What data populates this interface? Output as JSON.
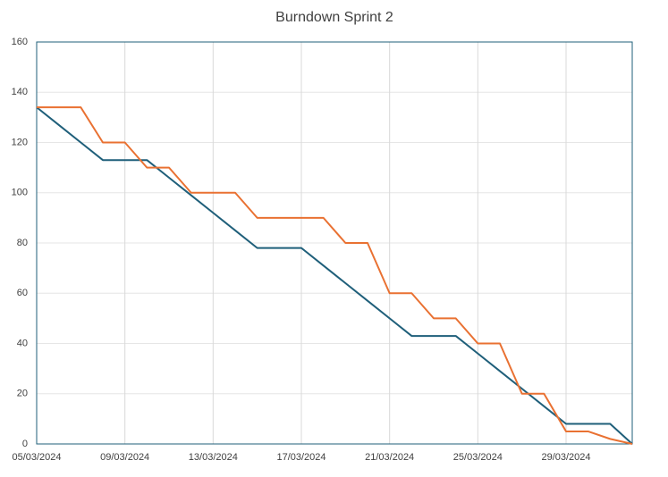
{
  "chart_data": {
    "type": "line",
    "title": "Burndown Sprint 2",
    "categories": [
      "05/03/2024",
      null,
      null,
      null,
      "09/03/2024",
      null,
      null,
      null,
      "13/03/2024",
      null,
      null,
      null,
      "17/03/2024",
      null,
      null,
      null,
      "21/03/2024",
      null,
      null,
      null,
      "25/03/2024",
      null,
      null,
      null,
      "29/03/2024",
      null,
      null,
      null
    ],
    "series": [
      {
        "color": "#1f5f7a",
        "values": [
          134,
          127,
          120,
          113,
          113,
          113,
          106,
          99,
          92,
          85,
          78,
          78,
          78,
          71,
          64,
          57,
          50,
          43,
          43,
          43,
          36,
          29,
          22,
          15,
          8,
          8,
          8,
          0
        ]
      },
      {
        "color": "#e97132",
        "values": [
          134,
          134,
          134,
          120,
          120,
          110,
          110,
          100,
          100,
          100,
          90,
          90,
          90,
          90,
          80,
          80,
          60,
          60,
          50,
          50,
          40,
          40,
          20,
          20,
          5,
          5,
          2,
          0
        ]
      }
    ],
    "ylim": [
      0,
      160
    ],
    "yticks": [
      0,
      20,
      40,
      60,
      80,
      100,
      120,
      140,
      160
    ],
    "grid": true
  }
}
